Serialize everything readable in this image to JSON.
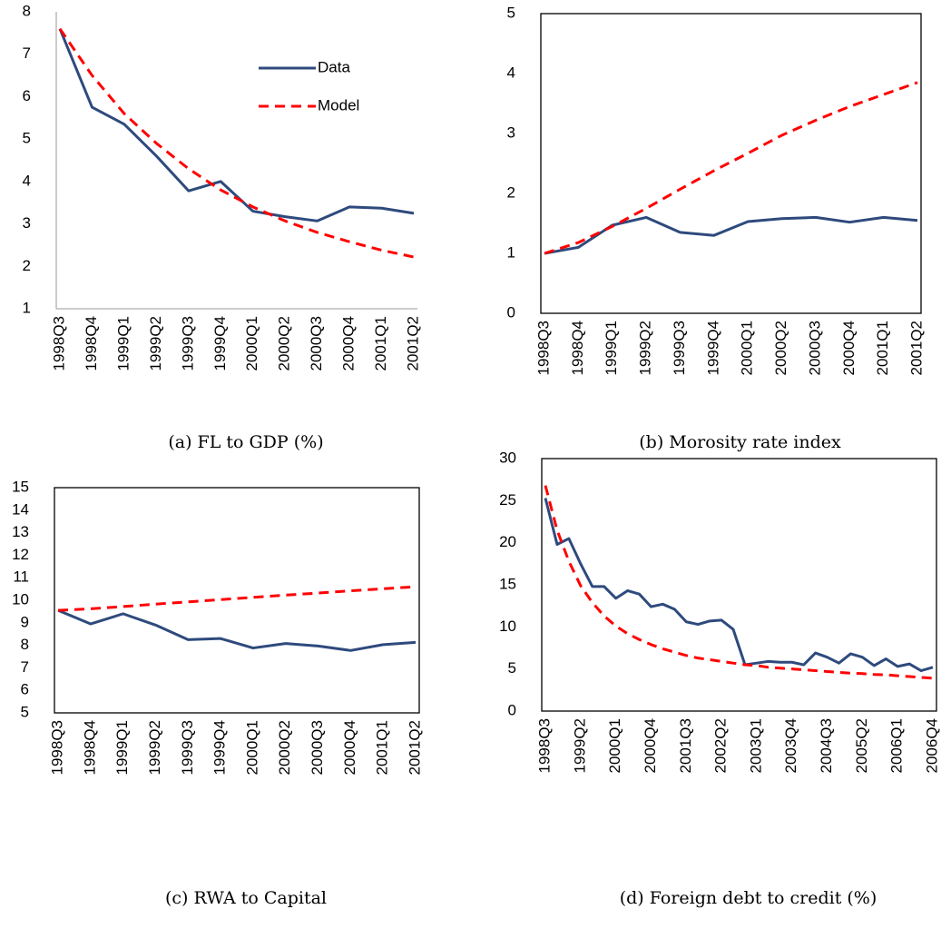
{
  "chart_data": [
    {
      "type": "line",
      "title": "(a) FL to GDP (%)",
      "categories": [
        "1998Q3",
        "1998Q4",
        "1999Q1",
        "1999Q2",
        "1999Q3",
        "1999Q4",
        "2000Q1",
        "2000Q2",
        "2000Q3",
        "2000Q4",
        "2001Q1",
        "2001Q2"
      ],
      "series": [
        {
          "name": "Data",
          "color": "#2e4a7d",
          "values": [
            7.6,
            5.75,
            5.35,
            4.6,
            3.78,
            4.0,
            3.3,
            3.17,
            3.07,
            3.4,
            3.37,
            3.25
          ]
        },
        {
          "name": "Model",
          "color": "#ff0000",
          "dashed": true,
          "values": [
            7.6,
            6.5,
            5.6,
            4.9,
            4.3,
            3.8,
            3.4,
            3.07,
            2.8,
            2.58,
            2.38,
            2.22
          ]
        }
      ],
      "ylim": [
        1,
        8
      ],
      "yticks": [
        1,
        2,
        3,
        4,
        5,
        6,
        7,
        8
      ],
      "legend": "upper right",
      "frame": false
    },
    {
      "type": "line",
      "title": "(b) Morosity rate index",
      "categories": [
        "1998Q3",
        "1998Q4",
        "1999Q1",
        "1999Q2",
        "1999Q3",
        "1999Q4",
        "2000Q1",
        "2000Q2",
        "2000Q3",
        "2000Q4",
        "2001Q1",
        "2001Q2"
      ],
      "series": [
        {
          "color": "#2e4a7d",
          "values": [
            1.0,
            1.1,
            1.47,
            1.6,
            1.35,
            1.3,
            1.53,
            1.58,
            1.6,
            1.52,
            1.6,
            1.55
          ]
        },
        {
          "color": "#ff0000",
          "dashed": true,
          "values": [
            1.0,
            1.18,
            1.45,
            1.75,
            2.07,
            2.38,
            2.67,
            2.97,
            3.22,
            3.45,
            3.65,
            3.85
          ]
        }
      ],
      "ylim": [
        0,
        5
      ],
      "yticks": [
        0,
        1,
        2,
        3,
        4,
        5
      ],
      "frame": true
    },
    {
      "type": "line",
      "title": "(c) RWA to Capital",
      "categories": [
        "1998Q3",
        "1998Q4",
        "1999Q1",
        "1999Q2",
        "1999Q3",
        "1999Q4",
        "2000Q1",
        "2000Q2",
        "2000Q3",
        "2000Q4",
        "2001Q1",
        "2001Q2"
      ],
      "series": [
        {
          "color": "#2e4a7d",
          "values": [
            9.55,
            8.95,
            9.4,
            8.9,
            8.25,
            8.3,
            7.88,
            8.08,
            7.97,
            7.77,
            8.03,
            8.13
          ]
        },
        {
          "color": "#ff0000",
          "dashed": true,
          "values": [
            9.55,
            9.62,
            9.72,
            9.83,
            9.93,
            10.03,
            10.13,
            10.23,
            10.32,
            10.42,
            10.51,
            10.6
          ]
        }
      ],
      "ylim": [
        5,
        15
      ],
      "yticks": [
        5,
        6,
        7,
        8,
        9,
        10,
        11,
        12,
        13,
        14,
        15
      ],
      "frame": true
    },
    {
      "type": "line",
      "title": "(d) Foreign debt to credit (%)",
      "categories": [
        "1998Q3",
        null,
        null,
        "1999Q2",
        null,
        null,
        "2000Q1",
        null,
        null,
        "2000Q4",
        null,
        null,
        "2001Q3",
        null,
        null,
        "2002Q2",
        null,
        null,
        "2003Q1",
        null,
        null,
        "2003Q4",
        null,
        null,
        "2004Q3",
        null,
        null,
        "2005Q2",
        null,
        null,
        "2006Q1",
        null,
        null,
        "2006Q4"
      ],
      "series": [
        {
          "color": "#2e4a7d",
          "values": [
            25.3,
            19.8,
            20.5,
            17.5,
            14.8,
            14.8,
            13.4,
            14.3,
            13.9,
            12.4,
            12.7,
            12.1,
            10.6,
            10.3,
            10.7,
            10.8,
            9.7,
            5.5,
            5.7,
            5.9,
            5.8,
            5.8,
            5.5,
            6.9,
            6.4,
            5.7,
            6.8,
            6.4,
            5.4,
            6.2,
            5.3,
            5.6,
            4.8,
            5.2
          ]
        },
        {
          "color": "#ff0000",
          "dashed": true,
          "values": [
            26.8,
            21.5,
            17.8,
            14.9,
            12.9,
            11.3,
            10.1,
            9.2,
            8.5,
            7.9,
            7.4,
            7.0,
            6.6,
            6.3,
            6.1,
            5.9,
            5.7,
            5.5,
            5.4,
            5.2,
            5.1,
            5.0,
            4.9,
            4.8,
            4.7,
            4.6,
            4.5,
            4.45,
            4.35,
            4.3,
            4.2,
            4.1,
            4.0,
            3.9
          ]
        }
      ],
      "ylim": [
        0,
        30
      ],
      "yticks": [
        0,
        5,
        10,
        15,
        20,
        25,
        30
      ],
      "frame": true
    }
  ]
}
